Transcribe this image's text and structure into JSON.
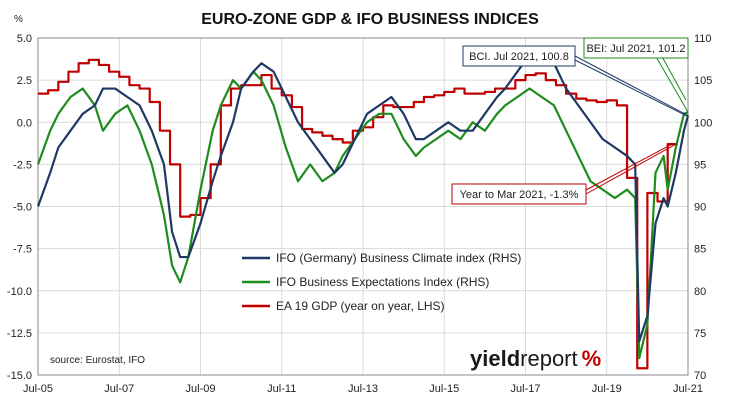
{
  "chart_data": {
    "type": "line",
    "title": "EURO-ZONE GDP & IFO BUSINESS INDICES",
    "left_axis_unit": "%",
    "left_ylim": [
      -15,
      5
    ],
    "right_ylim": [
      70,
      110
    ],
    "left_ticks": [
      "5.0",
      "2.5",
      "0.0",
      "-2.5",
      "-5.0",
      "-7.5",
      "-10.0",
      "-12.5",
      "-15.0"
    ],
    "right_ticks": [
      "110",
      "105",
      "100",
      "95",
      "90",
      "85",
      "80",
      "75",
      "70"
    ],
    "x_ticks": [
      "Jul-05",
      "Jul-07",
      "Jul-09",
      "Jul-11",
      "Jul-13",
      "Jul-15",
      "Jul-17",
      "Jul-19",
      "Jul-21"
    ],
    "xlim": [
      2005.5,
      2021.5
    ],
    "grid": true,
    "legend_placement": "bottom-center",
    "source": "source: Eurostat, IFO",
    "logo": {
      "part1": "yield",
      "part2": "report",
      "part3": "%"
    },
    "series": [
      {
        "name": "IFO (Germany) Business Climate index (RHS)",
        "axis": "right",
        "color": "#1f3864",
        "x": [
          2005.5,
          2005.8,
          2006.0,
          2006.3,
          2006.6,
          2006.9,
          2007.1,
          2007.4,
          2007.7,
          2008.0,
          2008.3,
          2008.6,
          2008.8,
          2009.0,
          2009.2,
          2009.5,
          2009.8,
          2010.0,
          2010.3,
          2010.5,
          2010.8,
          2011.0,
          2011.3,
          2011.6,
          2011.9,
          2012.2,
          2012.5,
          2012.8,
          2013.0,
          2013.3,
          2013.6,
          2013.9,
          2014.2,
          2014.5,
          2014.8,
          2015.0,
          2015.3,
          2015.6,
          2015.9,
          2016.2,
          2016.5,
          2016.8,
          2017.0,
          2017.3,
          2017.6,
          2017.9,
          2018.2,
          2018.5,
          2018.8,
          2019.1,
          2019.4,
          2019.7,
          2020.0,
          2020.2,
          2020.3,
          2020.5,
          2020.7,
          2020.9,
          2021.0,
          2021.2,
          2021.4,
          2021.5
        ],
        "y": [
          90,
          94,
          97,
          99,
          101,
          102,
          104,
          104,
          103,
          102,
          99,
          95,
          87,
          84,
          84,
          88,
          93,
          96,
          100,
          104,
          106,
          107,
          106,
          103,
          100,
          98,
          96,
          94,
          95,
          98,
          101,
          102,
          103,
          101,
          98,
          98,
          99,
          100,
          99,
          99,
          101,
          103,
          104,
          106,
          108,
          108,
          107,
          104,
          102,
          100,
          98,
          97,
          96,
          95,
          74,
          77,
          88,
          91,
          90,
          94,
          99,
          100.8
        ]
      },
      {
        "name": "IFO Business Expectations Index (RHS)",
        "axis": "right",
        "color": "#1e8c1e",
        "x": [
          2005.5,
          2005.8,
          2006.0,
          2006.3,
          2006.6,
          2006.9,
          2007.1,
          2007.4,
          2007.7,
          2008.0,
          2008.3,
          2008.6,
          2008.8,
          2009.0,
          2009.2,
          2009.5,
          2009.8,
          2010.0,
          2010.3,
          2010.5,
          2010.8,
          2011.0,
          2011.3,
          2011.6,
          2011.9,
          2012.2,
          2012.5,
          2012.8,
          2013.0,
          2013.3,
          2013.6,
          2013.9,
          2014.2,
          2014.5,
          2014.8,
          2015.0,
          2015.3,
          2015.6,
          2015.9,
          2016.2,
          2016.5,
          2016.8,
          2017.0,
          2017.3,
          2017.6,
          2017.9,
          2018.2,
          2018.5,
          2018.8,
          2019.1,
          2019.4,
          2019.7,
          2020.0,
          2020.2,
          2020.3,
          2020.5,
          2020.7,
          2020.9,
          2021.0,
          2021.2,
          2021.4,
          2021.5
        ],
        "y": [
          95,
          99,
          101,
          103,
          104,
          102,
          99,
          101,
          102,
          99,
          95,
          89,
          83,
          81,
          84,
          92,
          99,
          102,
          105,
          104,
          106,
          105,
          102,
          97,
          93,
          95,
          93,
          94,
          96,
          98,
          100,
          101,
          101,
          98,
          96,
          97,
          98,
          99,
          98,
          100,
          99,
          101,
          102,
          103,
          104,
          103,
          102,
          99,
          96,
          93,
          92,
          91,
          92,
          91,
          72,
          76,
          94,
          96,
          92,
          97,
          101,
          101.2
        ]
      },
      {
        "name": "EA 19 GDP (year on year, LHS)",
        "axis": "left",
        "color": "#c00000",
        "x": [
          2005.5,
          2005.75,
          2006.0,
          2006.25,
          2006.5,
          2006.75,
          2007.0,
          2007.25,
          2007.5,
          2007.75,
          2008.0,
          2008.25,
          2008.5,
          2008.75,
          2009.0,
          2009.25,
          2009.5,
          2009.75,
          2010.0,
          2010.25,
          2010.5,
          2010.75,
          2011.0,
          2011.25,
          2011.5,
          2011.75,
          2012.0,
          2012.25,
          2012.5,
          2012.75,
          2013.0,
          2013.25,
          2013.5,
          2013.75,
          2014.0,
          2014.25,
          2014.5,
          2014.75,
          2015.0,
          2015.25,
          2015.5,
          2015.75,
          2016.0,
          2016.25,
          2016.5,
          2016.75,
          2017.0,
          2017.25,
          2017.5,
          2017.75,
          2018.0,
          2018.25,
          2018.5,
          2018.75,
          2019.0,
          2019.25,
          2019.5,
          2019.75,
          2020.0,
          2020.25,
          2020.5,
          2020.75,
          2021.0,
          2021.25
        ],
        "y": [
          1.7,
          1.9,
          2.4,
          3.0,
          3.5,
          3.7,
          3.4,
          3.0,
          2.7,
          2.2,
          2.0,
          1.2,
          -0.5,
          -2.5,
          -5.6,
          -5.5,
          -4.5,
          -2.5,
          1.0,
          2.0,
          2.2,
          2.2,
          2.8,
          2.0,
          1.6,
          0.9,
          -0.4,
          -0.6,
          -0.8,
          -1.0,
          -1.2,
          -0.5,
          -0.3,
          0.3,
          1.0,
          0.9,
          0.9,
          1.2,
          1.5,
          1.6,
          1.8,
          2.0,
          1.7,
          1.7,
          1.8,
          2.0,
          2.0,
          2.5,
          2.8,
          2.9,
          2.5,
          2.2,
          1.7,
          1.4,
          1.3,
          1.2,
          1.3,
          1.0,
          -3.3,
          -14.6,
          -4.2,
          -4.7,
          -1.3,
          null
        ]
      }
    ],
    "annotations": [
      {
        "text": "BCI. Jul 2021, 100.8",
        "color": "#1f3864",
        "target_x": 2021.5,
        "target_y": 100.8,
        "axis": "right"
      },
      {
        "text": "BEI: Jul 2021, 101.2",
        "color": "#1e8c1e",
        "target_x": 2021.5,
        "target_y": 101.2,
        "axis": "right"
      },
      {
        "text": "Year to Mar 2021, -1.3%",
        "color": "#c00000",
        "target_x": 2021.2,
        "target_y": -1.3,
        "axis": "left"
      }
    ]
  }
}
